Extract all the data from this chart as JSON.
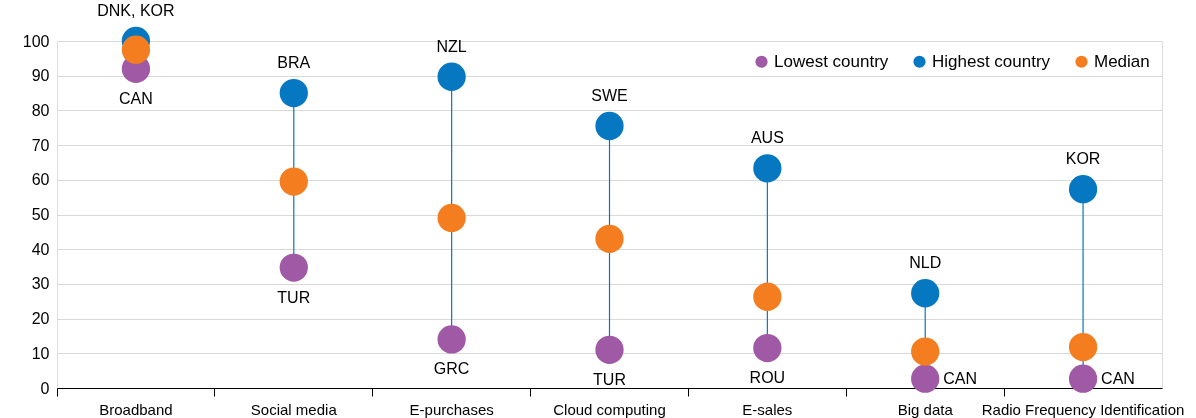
{
  "chart_data": {
    "type": "scatter",
    "categories": [
      "Broadband",
      "Social media",
      "E-purchases",
      "Cloud computing",
      "E-sales",
      "Big data",
      "Radio Frequency Identification"
    ],
    "series": [
      {
        "name": "Lowest country",
        "color": "#a05aa5",
        "values": [
          92,
          34.7,
          14,
          11,
          11.5,
          2.7,
          2.7
        ]
      },
      {
        "name": "Highest country",
        "color": "#0678c2",
        "values": [
          100,
          85,
          89.7,
          75.5,
          63.3,
          27.3,
          57.3
        ]
      },
      {
        "name": "Median",
        "color": "#f47d20",
        "values": [
          97.5,
          59.5,
          49,
          43,
          26.3,
          10.5,
          11.8
        ]
      }
    ],
    "ylim": [
      0,
      100
    ],
    "yticks": [
      0,
      10,
      20,
      30,
      40,
      50,
      60,
      70,
      80,
      90,
      100
    ],
    "grid": "y",
    "legend": "top right",
    "marker": "circle",
    "annotations": [
      {
        "text": "DNK, KOR",
        "x": "Broadband",
        "y": 100
      },
      {
        "text": "CAN",
        "x": "Broadband",
        "y": 92
      },
      {
        "text": "BRA",
        "x": "Social media",
        "y": 85
      },
      {
        "text": "TUR",
        "x": "Social media",
        "y": 34.7
      },
      {
        "text": "NZL",
        "x": "E-purchases",
        "y": 89.7
      },
      {
        "text": "GRC",
        "x": "E-purchases",
        "y": 14
      },
      {
        "text": "SWE",
        "x": "Cloud computing",
        "y": 75.5
      },
      {
        "text": "TUR",
        "x": "Cloud computing",
        "y": 11
      },
      {
        "text": "AUS",
        "x": "E-sales",
        "y": 63.3
      },
      {
        "text": "ROU",
        "x": "E-sales",
        "y": 11.5
      },
      {
        "text": "NLD",
        "x": "Big data",
        "y": 27.3
      },
      {
        "text": "CAN",
        "x": "Big data",
        "y": 2.7
      },
      {
        "text": "KOR",
        "x": "Radio Frequency Identification",
        "y": 57.3
      },
      {
        "text": "CAN",
        "x": "Radio Frequency Identification",
        "y": 2.7
      }
    ]
  }
}
